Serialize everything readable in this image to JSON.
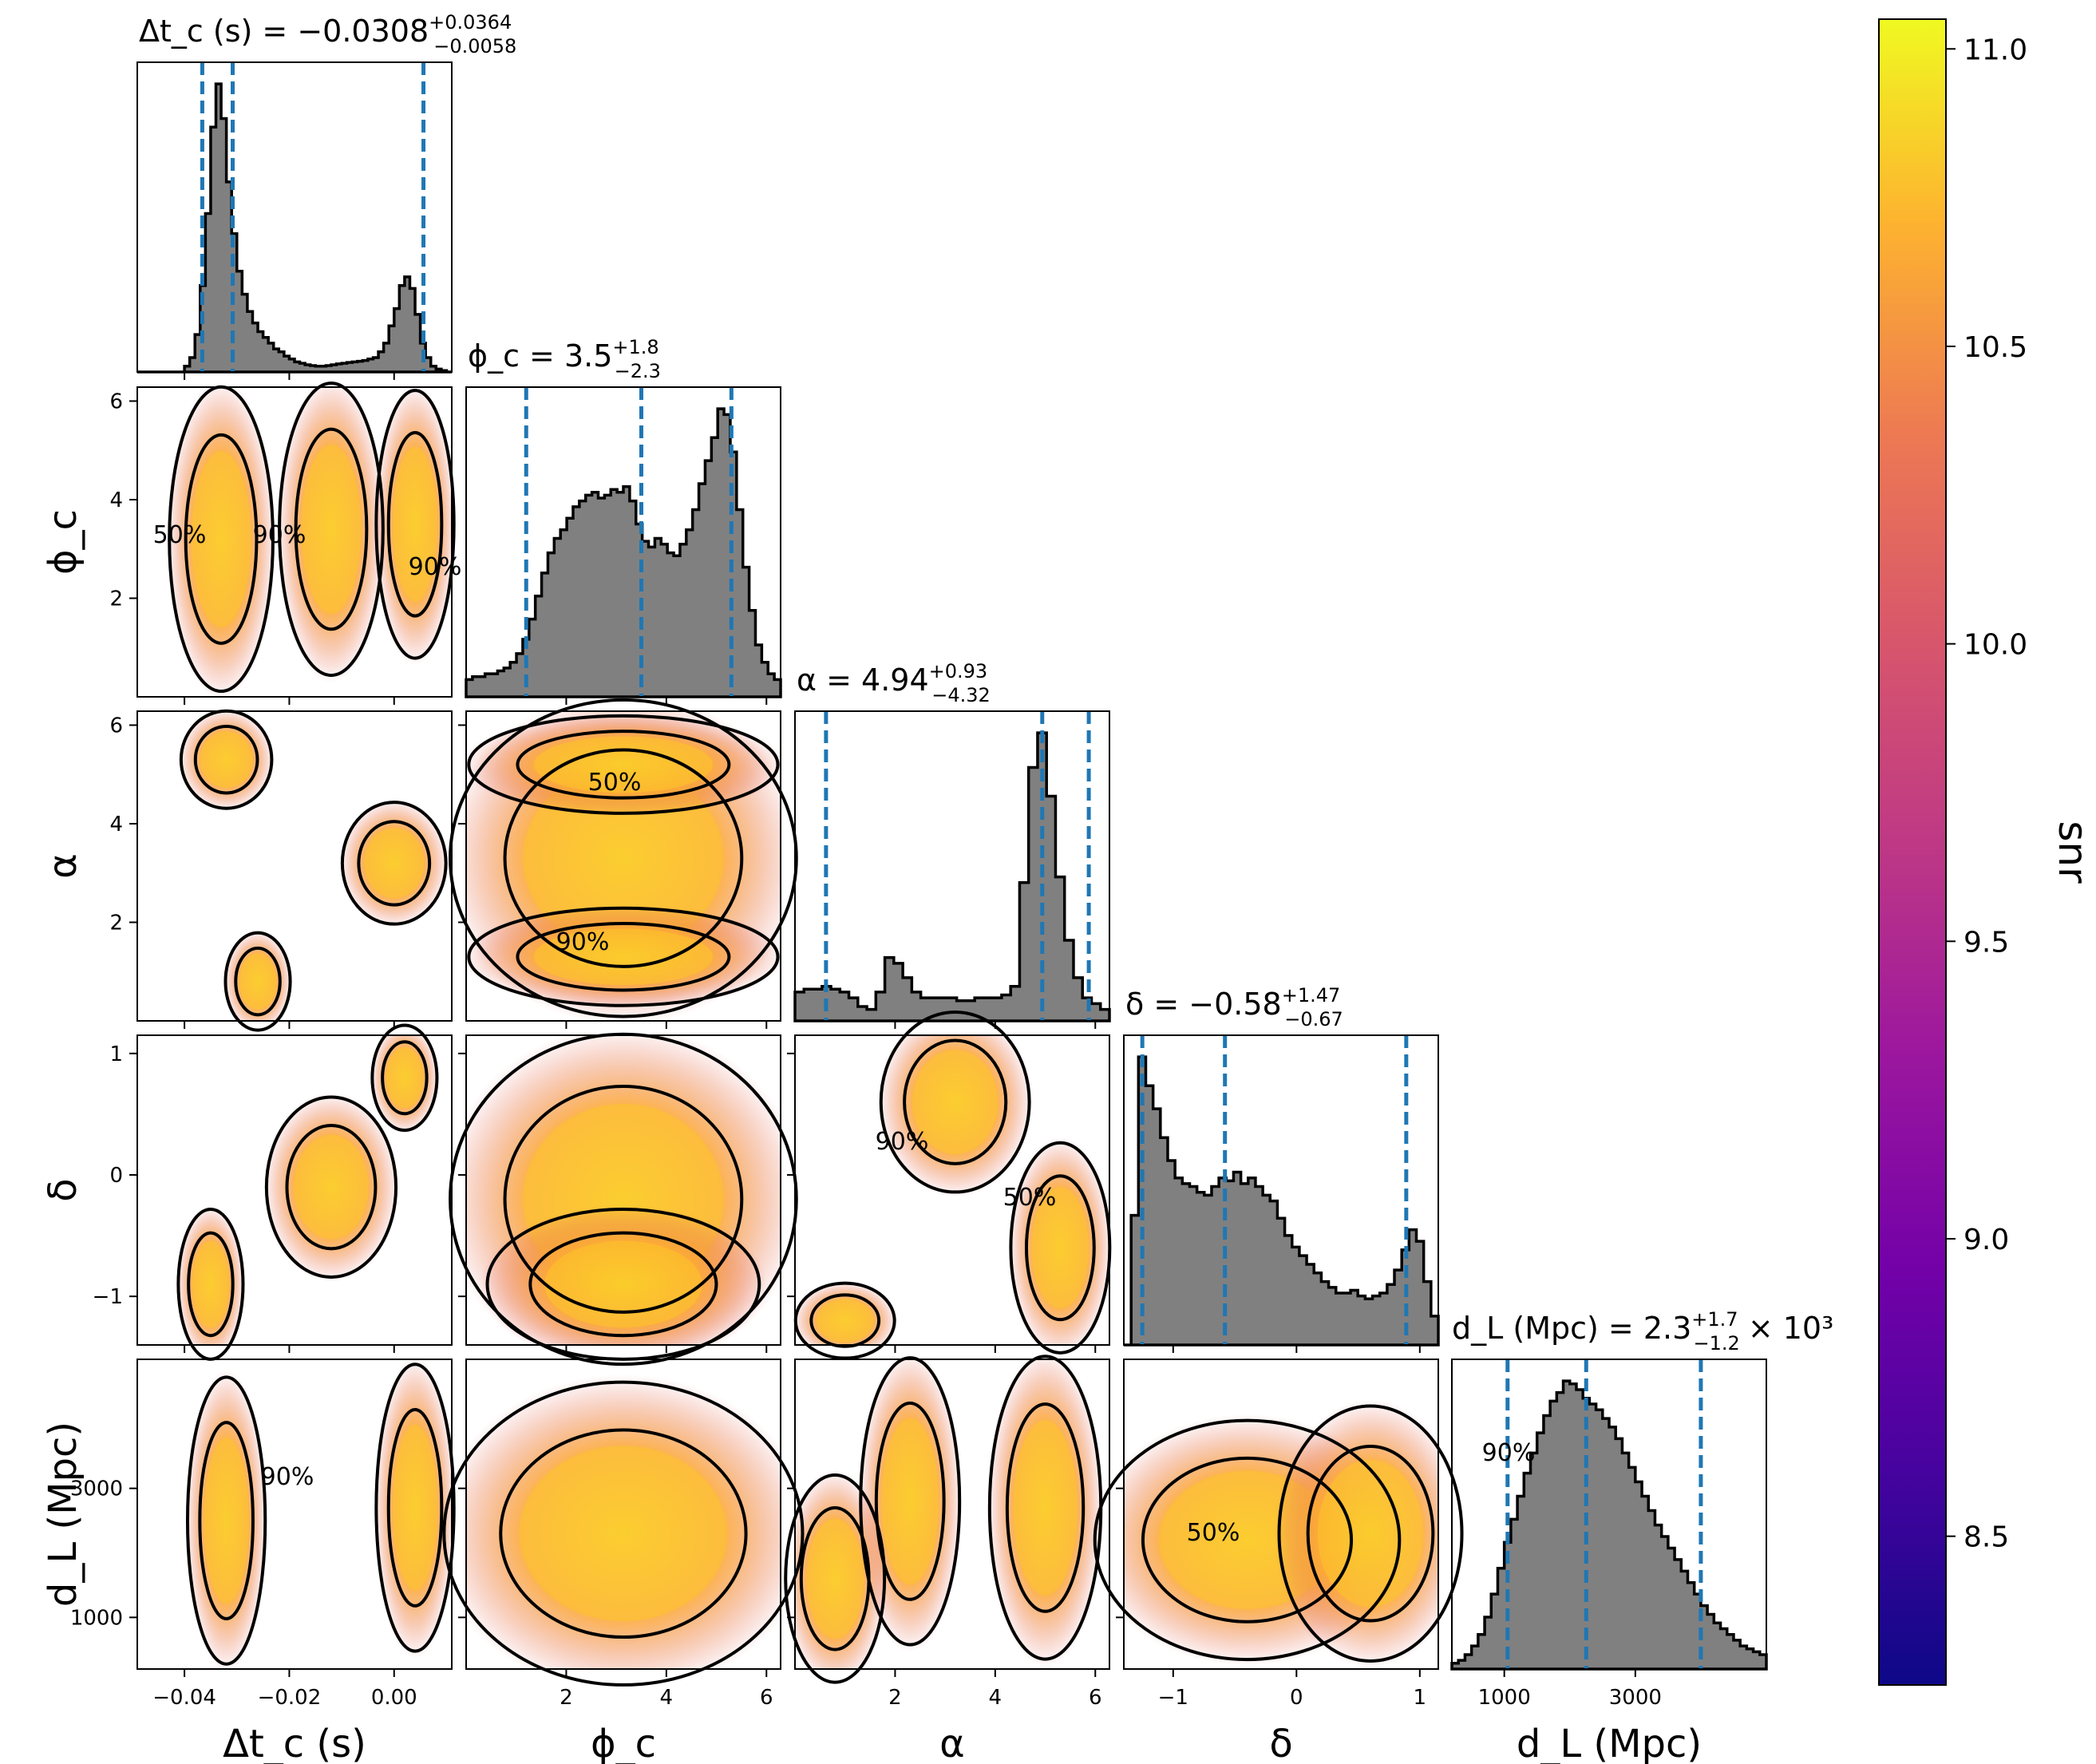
{
  "chart_data": {
    "type": "corner",
    "colormap": "plasma",
    "colorbar": {
      "label": "snr",
      "ticks": [
        "8.5",
        "9.0",
        "9.5",
        "10.0",
        "10.5",
        "11.0"
      ],
      "range": [
        8.25,
        11.05
      ]
    },
    "hist_color": "#808080",
    "quantile_line_color": "#1f77b4",
    "contour_levels": [
      "50%",
      "90%"
    ],
    "params": [
      {
        "id": "dtc",
        "label": "Δt_c (s)",
        "range": [
          -0.049,
          0.011
        ],
        "ticks": [
          -0.04,
          -0.02,
          0.0
        ],
        "tick_labels": [
          "−0.04",
          "−0.02",
          "0.00"
        ],
        "title": {
          "lhs": "Δt_c (s) = −0.0308",
          "sup": "+0.0364",
          "sub": "−0.0058",
          "suffix": ""
        },
        "quantiles": [
          -0.0366,
          -0.0308,
          0.0056
        ]
      },
      {
        "id": "phic",
        "label": "ϕ_c",
        "range": [
          0,
          6.283
        ],
        "ticks": [
          2,
          4,
          6
        ],
        "tick_labels": [
          "2",
          "4",
          "6"
        ],
        "ticks_y": [
          2,
          4,
          6
        ],
        "tick_labels_y": [
          "2",
          "4",
          "6"
        ],
        "title": {
          "lhs": "ϕ_c = 3.5",
          "sup": "+1.8",
          "sub": "−2.3",
          "suffix": ""
        },
        "quantiles": [
          1.2,
          3.5,
          5.3
        ]
      },
      {
        "id": "alpha",
        "label": "α",
        "range": [
          0,
          6.283
        ],
        "ticks": [
          2,
          4,
          6
        ],
        "tick_labels": [
          "2",
          "4",
          "6"
        ],
        "ticks_y": [
          2,
          4,
          6
        ],
        "tick_labels_y": [
          "2",
          "4",
          "6"
        ],
        "title": {
          "lhs": "α = 4.94",
          "sup": "+0.93",
          "sub": "−4.32",
          "suffix": ""
        },
        "quantiles": [
          0.62,
          4.94,
          5.87
        ]
      },
      {
        "id": "delta",
        "label": "δ",
        "range": [
          -1.4,
          1.15
        ],
        "ticks": [
          -1,
          0,
          1
        ],
        "tick_labels": [
          "−1",
          "0",
          "1"
        ],
        "ticks_y": [
          -1,
          0,
          1
        ],
        "tick_labels_y": [
          "−1",
          "0",
          "1"
        ],
        "title": {
          "lhs": "δ = −0.58",
          "sup": "+1.47",
          "sub": "−0.67",
          "suffix": ""
        },
        "quantiles": [
          -1.25,
          -0.58,
          0.89
        ]
      },
      {
        "id": "dl",
        "label": "d_L (Mpc)",
        "range": [
          200,
          5000
        ],
        "ticks": [
          1000,
          3000
        ],
        "tick_labels": [
          "1000",
          "3000"
        ],
        "ticks_y": [
          1000,
          3000
        ],
        "tick_labels_y": [
          "1000",
          "3000"
        ],
        "title": {
          "lhs": "d_L (Mpc) = 2.3",
          "sup": "+1.7",
          "sub": "−1.2",
          "suffix": "× 10³"
        },
        "quantiles": [
          1050,
          2250,
          4000
        ]
      }
    ],
    "histograms": {
      "dtc": [
        0,
        0,
        0,
        0,
        0,
        0,
        0,
        0,
        0,
        0.02,
        0.05,
        0.13,
        0.3,
        0.55,
        0.85,
        1.0,
        0.88,
        0.66,
        0.48,
        0.35,
        0.27,
        0.21,
        0.17,
        0.14,
        0.12,
        0.1,
        0.08,
        0.07,
        0.055,
        0.045,
        0.035,
        0.03,
        0.025,
        0.022,
        0.02,
        0.02,
        0.022,
        0.025,
        0.028,
        0.03,
        0.033,
        0.035,
        0.037,
        0.04,
        0.045,
        0.05,
        0.07,
        0.1,
        0.16,
        0.22,
        0.3,
        0.33,
        0.29,
        0.2,
        0.1,
        0.05,
        0.02,
        0.01,
        0.005,
        0
      ],
      "phic": [
        0.06,
        0.07,
        0.07,
        0.08,
        0.08,
        0.09,
        0.1,
        0.12,
        0.15,
        0.2,
        0.27,
        0.35,
        0.43,
        0.5,
        0.55,
        0.58,
        0.62,
        0.66,
        0.68,
        0.7,
        0.71,
        0.69,
        0.7,
        0.72,
        0.71,
        0.73,
        0.68,
        0.6,
        0.54,
        0.52,
        0.55,
        0.53,
        0.5,
        0.49,
        0.53,
        0.58,
        0.65,
        0.74,
        0.82,
        0.9,
        1.0,
        0.98,
        0.85,
        0.65,
        0.45,
        0.3,
        0.18,
        0.12,
        0.08,
        0.06
      ],
      "alpha": [
        0.1,
        0.11,
        0.11,
        0.12,
        0.11,
        0.1,
        0.08,
        0.05,
        0.04,
        0.1,
        0.22,
        0.2,
        0.15,
        0.1,
        0.08,
        0.08,
        0.08,
        0.08,
        0.07,
        0.07,
        0.08,
        0.08,
        0.08,
        0.09,
        0.12,
        0.48,
        0.88,
        1.0,
        0.78,
        0.5,
        0.28,
        0.15,
        0.08,
        0.06,
        0.04
      ],
      "delta": [
        0.0,
        0.45,
        1.0,
        0.9,
        0.82,
        0.72,
        0.64,
        0.58,
        0.56,
        0.55,
        0.53,
        0.52,
        0.55,
        0.58,
        0.57,
        0.6,
        0.56,
        0.58,
        0.55,
        0.52,
        0.5,
        0.44,
        0.38,
        0.34,
        0.31,
        0.28,
        0.25,
        0.22,
        0.2,
        0.18,
        0.18,
        0.19,
        0.17,
        0.16,
        0.17,
        0.18,
        0.21,
        0.26,
        0.33,
        0.4,
        0.36,
        0.22,
        0.1
      ],
      "dl": [
        0.02,
        0.03,
        0.05,
        0.08,
        0.12,
        0.18,
        0.26,
        0.35,
        0.44,
        0.52,
        0.6,
        0.68,
        0.75,
        0.82,
        0.88,
        0.93,
        0.96,
        1.0,
        0.99,
        0.97,
        0.94,
        0.92,
        0.9,
        0.87,
        0.84,
        0.8,
        0.75,
        0.7,
        0.65,
        0.6,
        0.55,
        0.5,
        0.46,
        0.42,
        0.38,
        0.34,
        0.3,
        0.26,
        0.22,
        0.19,
        0.16,
        0.14,
        0.12,
        0.1,
        0.08,
        0.07,
        0.06,
        0.05
      ]
    }
  }
}
